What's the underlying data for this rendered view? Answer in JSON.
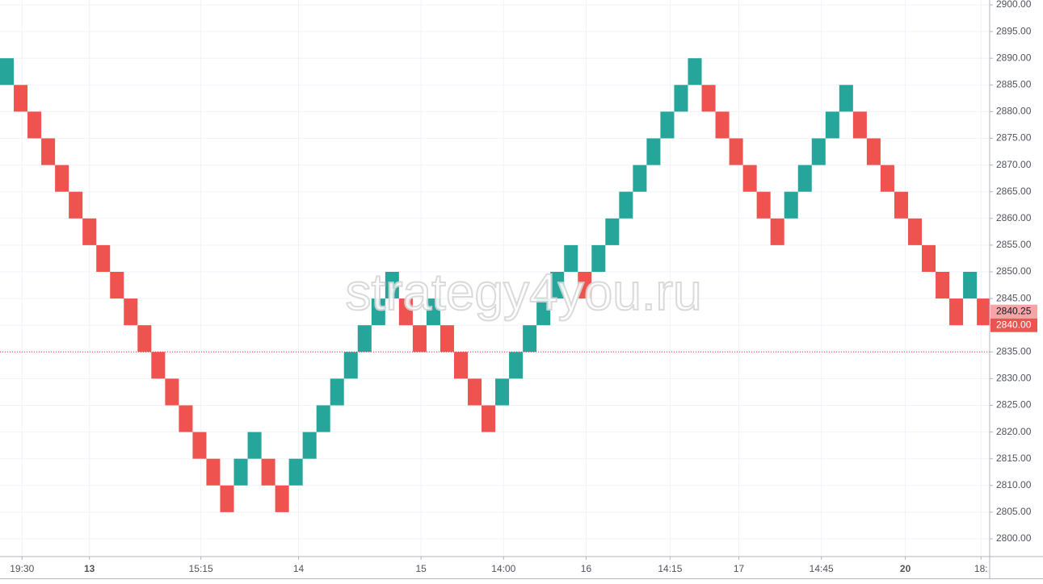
{
  "chart_data": {
    "type": "renko",
    "watermark": "strategy4you.ru",
    "up_color": "#26a69a",
    "down_color": "#ef5350",
    "open": [
      2885,
      2885,
      2880,
      2875,
      2870,
      2865,
      2860,
      2855,
      2850,
      2845,
      2840,
      2835,
      2830,
      2825,
      2820,
      2815,
      2810,
      2810,
      2815,
      2815,
      2810,
      2810,
      2815,
      2820,
      2825,
      2830,
      2835,
      2840,
      2845,
      2845,
      2840,
      2840,
      2840,
      2835,
      2830,
      2825,
      2825,
      2830,
      2835,
      2840,
      2845,
      2850,
      2850,
      2850,
      2855,
      2860,
      2865,
      2870,
      2875,
      2880,
      2885,
      2885,
      2880,
      2875,
      2870,
      2865,
      2860,
      2860,
      2865,
      2870,
      2875,
      2880,
      2880,
      2875,
      2870,
      2865,
      2860,
      2855,
      2850,
      2845,
      2845,
      2845
    ],
    "close": [
      2890,
      2880,
      2875,
      2870,
      2865,
      2860,
      2855,
      2850,
      2845,
      2840,
      2835,
      2830,
      2825,
      2820,
      2815,
      2810,
      2805,
      2815,
      2820,
      2810,
      2805,
      2815,
      2820,
      2825,
      2830,
      2835,
      2840,
      2845,
      2850,
      2840,
      2835,
      2845,
      2835,
      2830,
      2825,
      2820,
      2830,
      2835,
      2840,
      2845,
      2850,
      2855,
      2845,
      2855,
      2860,
      2865,
      2870,
      2875,
      2880,
      2885,
      2890,
      2880,
      2875,
      2870,
      2865,
      2860,
      2855,
      2865,
      2870,
      2875,
      2880,
      2885,
      2875,
      2870,
      2865,
      2860,
      2855,
      2850,
      2845,
      2840,
      2850,
      2840
    ],
    "ylim": [
      2800,
      2900
    ],
    "yticks": [
      {
        "value": 2800,
        "label": "2800.00"
      },
      {
        "value": 2805,
        "label": "2805.00"
      },
      {
        "value": 2810,
        "label": "2810.00"
      },
      {
        "value": 2815,
        "label": "2815.00"
      },
      {
        "value": 2820,
        "label": "2820.00"
      },
      {
        "value": 2825,
        "label": "2825.00"
      },
      {
        "value": 2830,
        "label": "2830.00"
      },
      {
        "value": 2835,
        "label": "2835.00"
      },
      {
        "value": 2840,
        "label": "2840.00"
      },
      {
        "value": 2845,
        "label": "2845.00"
      },
      {
        "value": 2850,
        "label": "2850.00"
      },
      {
        "value": 2855,
        "label": "2855.00"
      },
      {
        "value": 2860,
        "label": "2860.00"
      },
      {
        "value": 2865,
        "label": "2865.00"
      },
      {
        "value": 2870,
        "label": "2870.00"
      },
      {
        "value": 2875,
        "label": "2875.00"
      },
      {
        "value": 2880,
        "label": "2880.00"
      },
      {
        "value": 2885,
        "label": "2885.00"
      },
      {
        "value": 2890,
        "label": "2890.00"
      },
      {
        "value": 2895,
        "label": "2895.00"
      },
      {
        "value": 2900,
        "label": "2900.00"
      }
    ],
    "xticks": [
      {
        "value": 1.6,
        "label": "19:30"
      },
      {
        "value": 6.5,
        "label": "13",
        "bold": true
      },
      {
        "value": 14.6,
        "label": "15:15"
      },
      {
        "value": 21.7,
        "label": "14"
      },
      {
        "value": 30.6,
        "label": "15"
      },
      {
        "value": 36.6,
        "label": "14:00"
      },
      {
        "value": 42.6,
        "label": "16"
      },
      {
        "value": 48.7,
        "label": "14:15"
      },
      {
        "value": 53.7,
        "label": "17"
      },
      {
        "value": 59.7,
        "label": "14:45"
      },
      {
        "value": 65.8,
        "label": "20",
        "bold": true
      },
      {
        "value": 71.3,
        "label": "18:"
      }
    ],
    "grid": true,
    "hline": {
      "value": 2835,
      "color": "#e53935"
    },
    "price_labels": [
      {
        "value": 2840.25,
        "label": "2840.25",
        "color": "#f5a5a5"
      },
      {
        "value": 2840,
        "label": "2840.00",
        "color": "#ef5350"
      }
    ]
  }
}
